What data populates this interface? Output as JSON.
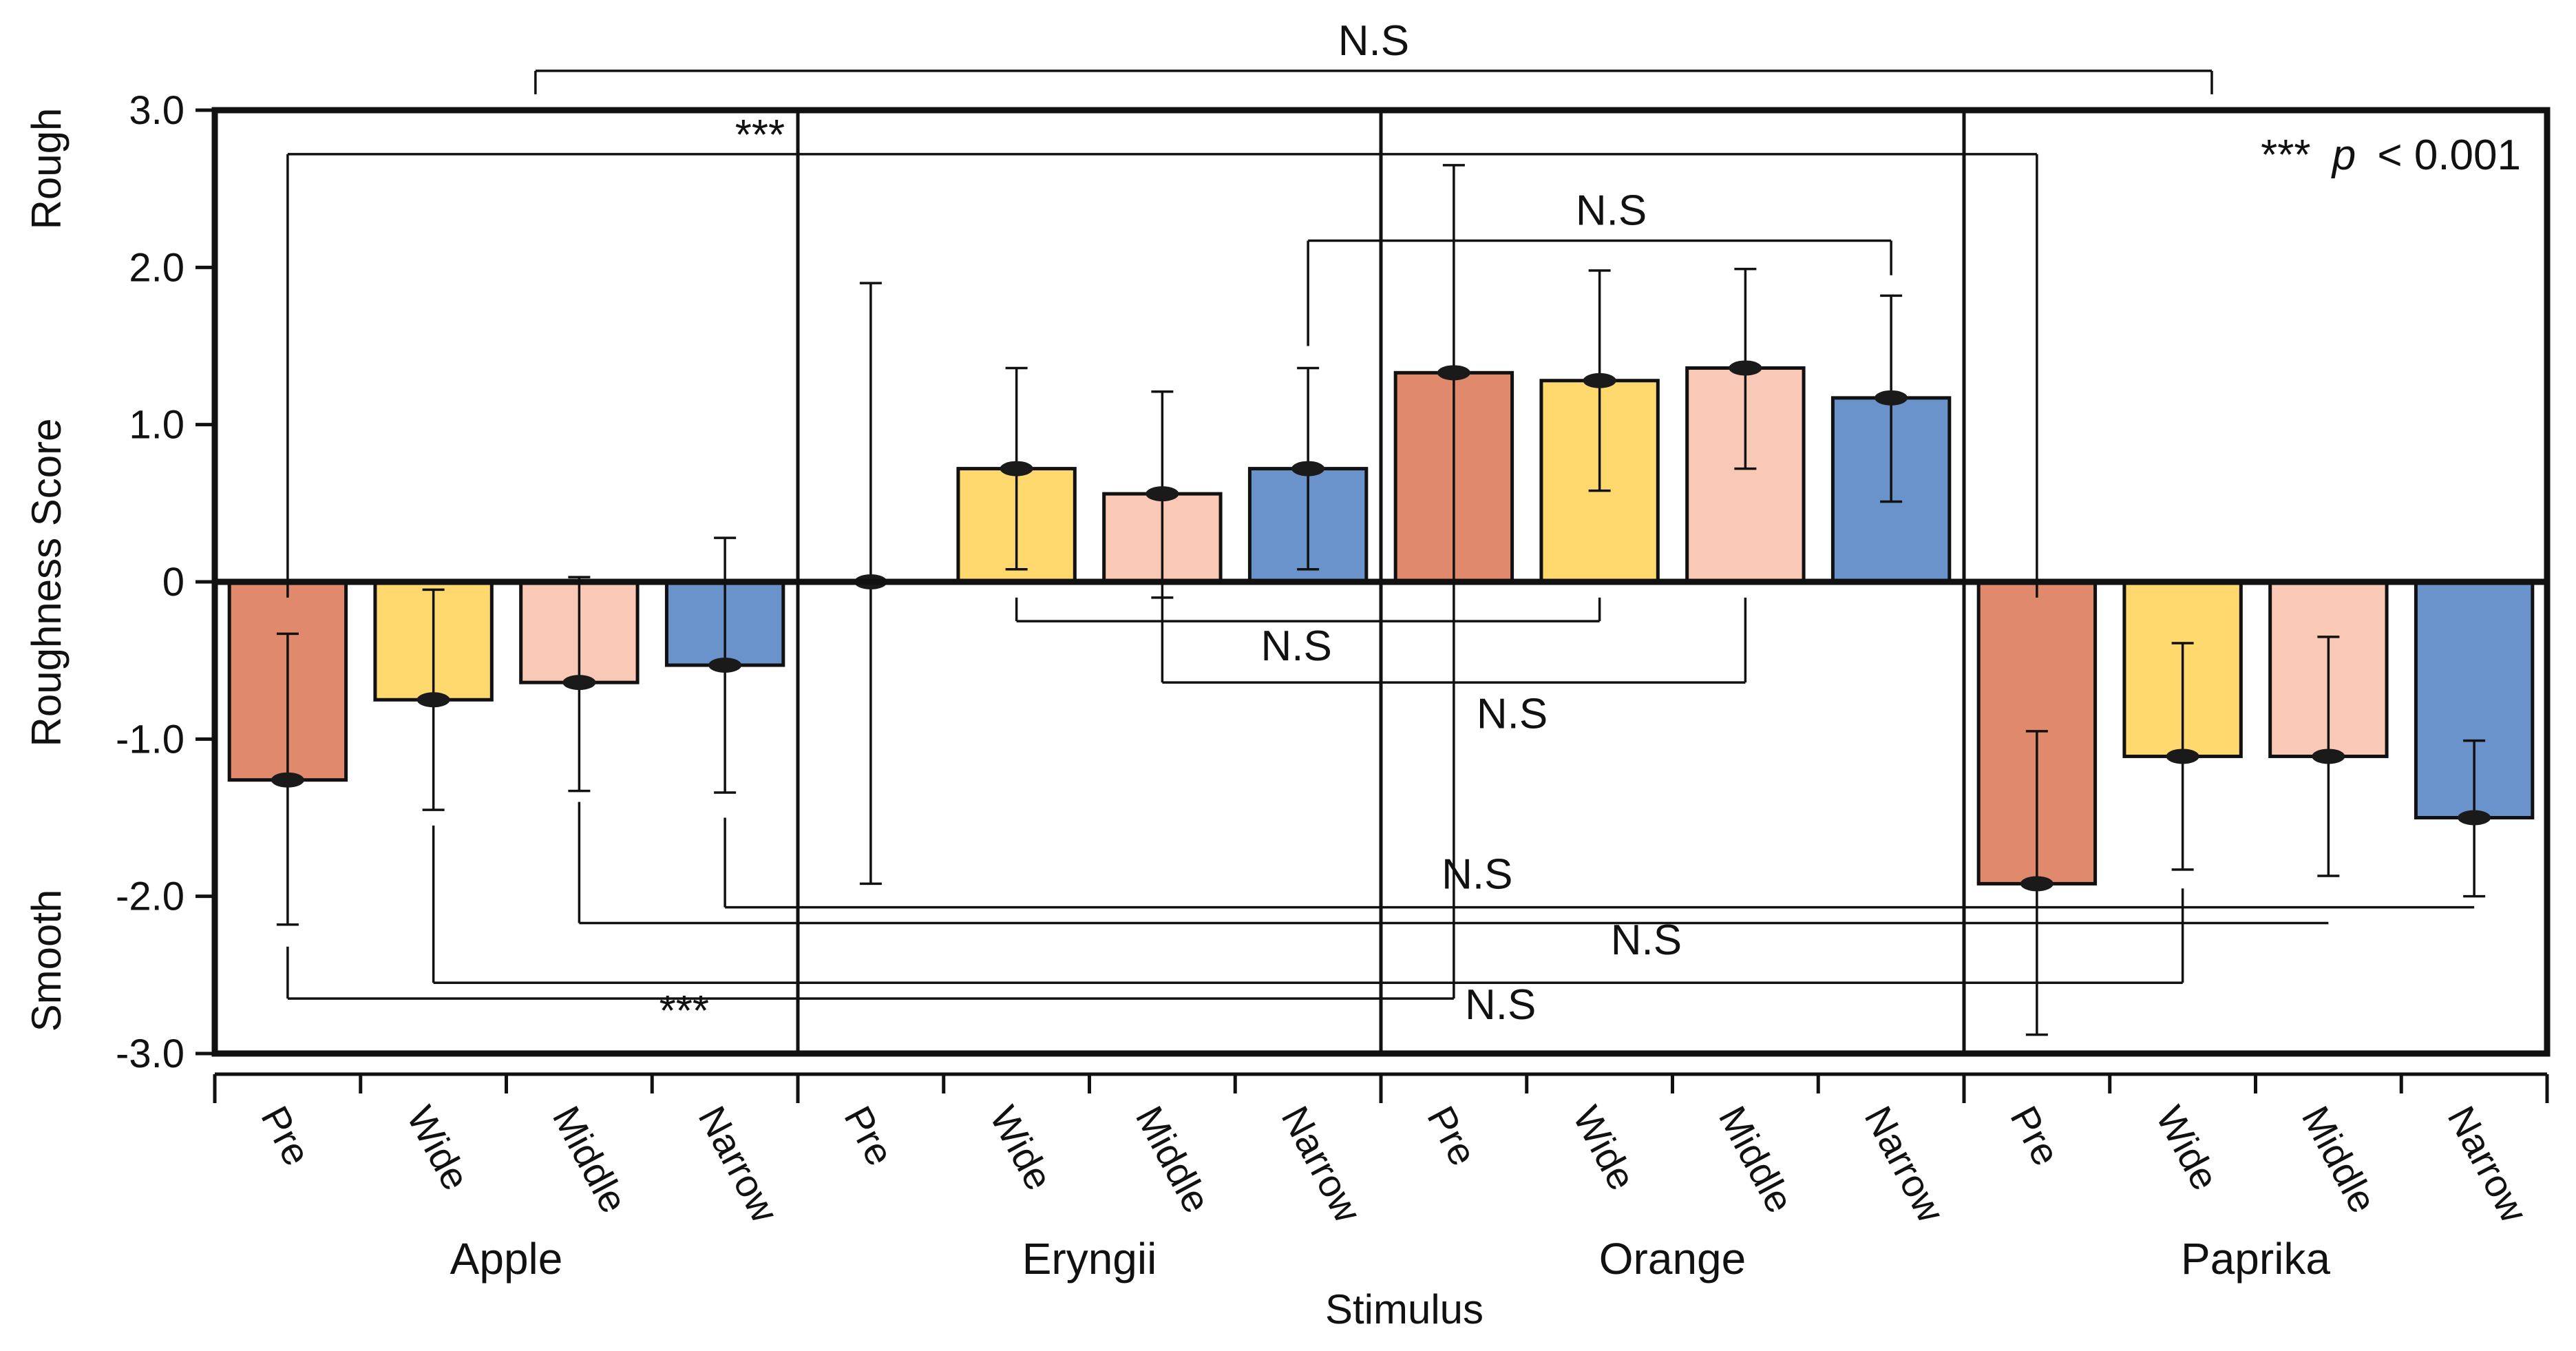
{
  "chart_data": {
    "type": "bar",
    "ylabel": "Roughness Score",
    "xlabel": "Stimulus",
    "ylim": [
      -3.0,
      3.0
    ],
    "yticks": [
      "3.0",
      "2.0",
      "1.0",
      "0",
      "-1.0",
      "-2.0",
      "-3.0"
    ],
    "ytick_values": [
      3,
      2,
      1,
      0,
      -1,
      -2,
      -3
    ],
    "y_end_labels": {
      "top": "Rough",
      "bottom": "Smooth"
    },
    "groups": [
      {
        "name": "Apple",
        "bars": [
          {
            "label": "Pre",
            "value": -1.26,
            "err_low": -2.18,
            "err_high": -0.33,
            "color": "#E0896D"
          },
          {
            "label": "Wide",
            "value": -0.75,
            "err_low": -1.45,
            "err_high": -0.05,
            "color": "#FFD96E"
          },
          {
            "label": "Middle",
            "value": -0.64,
            "err_low": -1.33,
            "err_high": 0.03,
            "color": "#F9C9B5"
          },
          {
            "label": "Narrow",
            "value": -0.53,
            "err_low": -1.34,
            "err_high": 0.28,
            "color": "#6A93CB"
          }
        ]
      },
      {
        "name": "Eryngii",
        "bars": [
          {
            "label": "Pre",
            "value": 0.0,
            "err_low": -1.92,
            "err_high": 1.9,
            "color": "#E0896D"
          },
          {
            "label": "Wide",
            "value": 0.72,
            "err_low": 0.08,
            "err_high": 1.36,
            "color": "#FFD96E"
          },
          {
            "label": "Middle",
            "value": 0.56,
            "err_low": -0.1,
            "err_high": 1.21,
            "color": "#F9C9B5"
          },
          {
            "label": "Narrow",
            "value": 0.72,
            "err_low": 0.08,
            "err_high": 1.36,
            "color": "#6A93CB"
          }
        ]
      },
      {
        "name": "Orange",
        "bars": [
          {
            "label": "Pre",
            "value": 1.33,
            "err_low": 0.0,
            "err_high": 2.65,
            "color": "#E0896D"
          },
          {
            "label": "Wide",
            "value": 1.28,
            "err_low": 0.58,
            "err_high": 1.98,
            "color": "#FFD96E"
          },
          {
            "label": "Middle",
            "value": 1.36,
            "err_low": 0.72,
            "err_high": 1.99,
            "color": "#F9C9B5"
          },
          {
            "label": "Narrow",
            "value": 1.17,
            "err_low": 0.51,
            "err_high": 1.82,
            "color": "#6A93CB"
          }
        ]
      },
      {
        "name": "Paprika",
        "bars": [
          {
            "label": "Pre",
            "value": -1.92,
            "err_low": -2.88,
            "err_high": -0.95,
            "color": "#E0896D"
          },
          {
            "label": "Wide",
            "value": -1.11,
            "err_low": -1.83,
            "err_high": -0.39,
            "color": "#FFD96E"
          },
          {
            "label": "Middle",
            "value": -1.11,
            "err_low": -1.87,
            "err_high": -0.35,
            "color": "#F9C9B5"
          },
          {
            "label": "Narrow",
            "value": -1.5,
            "err_low": -2.0,
            "err_high": -1.01,
            "color": "#6A93CB"
          }
        ]
      }
    ],
    "p_note": {
      "stars": "***",
      "p": "p",
      "rest": "< 0.001"
    },
    "comparisons": [
      {
        "text": "N.S",
        "type": "top",
        "from": [
          0,
          -1
        ],
        "to": [
          3,
          -1
        ],
        "level": 3.25,
        "text_level": 3.35
      },
      {
        "text": "***",
        "type": "top",
        "from": [
          0,
          0
        ],
        "to": [
          3,
          0
        ],
        "level": 2.72,
        "text_level": 2.75,
        "text_at": 0.27,
        "drop_from": -0.1,
        "drop_to": -0.1
      },
      {
        "text": "N.S",
        "type": "top",
        "from": [
          1,
          3
        ],
        "to": [
          2,
          3
        ],
        "level": 2.17,
        "text_level": 2.27,
        "text_at": 0.52,
        "drop_from": 1.5,
        "drop_to": 1.95
      },
      {
        "text": "N.S",
        "type": "bottom",
        "from": [
          1,
          1
        ],
        "to": [
          2,
          1
        ],
        "level": -0.25,
        "text_level": -0.5,
        "text_at": 0.48,
        "drop_from": -0.1,
        "drop_to": -0.1
      },
      {
        "text": "N.S",
        "type": "bottom",
        "from": [
          1,
          2
        ],
        "to": [
          2,
          2
        ],
        "level": -0.64,
        "text_level": -0.93,
        "text_at": 0.6,
        "drop_from": -0.1,
        "drop_to": -0.1
      },
      {
        "text": "N.S",
        "type": "bottom",
        "from": [
          0,
          3
        ],
        "to": [
          3,
          3
        ],
        "level": -2.07,
        "text_level": -1.95,
        "text_at": 0.43,
        "drop_from": -1.5,
        "drop_to": -2.07
      },
      {
        "text": "N.S",
        "type": "bottom",
        "from": [
          0,
          2
        ],
        "to": [
          3,
          2
        ],
        "level": -2.17,
        "text_level": -2.37,
        "text_at": 0.61,
        "drop_from": -1.4,
        "drop_to": -2.17
      },
      {
        "text": "N.S",
        "type": "bottom",
        "from": [
          0,
          1
        ],
        "to": [
          3,
          1
        ],
        "level": -2.55,
        "text_level": -2.78,
        "text_at": 0.61,
        "drop_from": -1.55,
        "drop_to": -1.95
      },
      {
        "text": "***",
        "type": "bottom",
        "from": [
          0,
          0
        ],
        "to": [
          2,
          0
        ],
        "level": -2.65,
        "text_level": -2.82,
        "text_at": 0.34,
        "drop_from": -2.32,
        "drop_to": 0.0
      }
    ]
  }
}
